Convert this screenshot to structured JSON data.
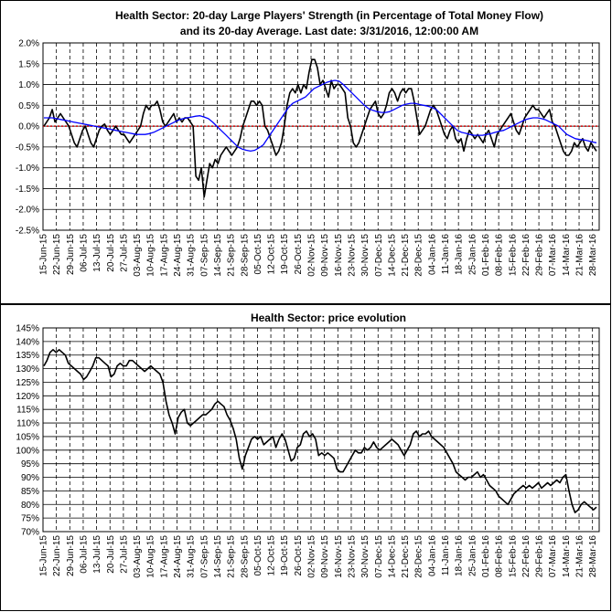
{
  "colors": {
    "strength_line": "#000000",
    "average_line": "#0000ff",
    "zero_line": "#cc0000",
    "price_line": "#000000",
    "grid": "#000000",
    "background": "#ffffff"
  },
  "chart_data": [
    {
      "type": "line",
      "title_line1": "Health Sector: 20-day Large Players' Strength (in Percentage of Total Money Flow)",
      "title_line2": "and its 20-day Average. Last date: 3/31/2016, 12:00:00 AM",
      "ylim": [
        -2.5,
        2.0
      ],
      "y_ticks": [
        "2.0%",
        "1.5%",
        "1.0%",
        "0.5%",
        "0.0%",
        "-0.5%",
        "-1.0%",
        "-1.5%",
        "-2.0%",
        "-2.5%"
      ],
      "x_ticks": [
        "15-Jun-15",
        "22-Jun-15",
        "29-Jun-15",
        "06-Jul-15",
        "13-Jul-15",
        "20-Jul-15",
        "27-Jul-15",
        "03-Aug-15",
        "10-Aug-15",
        "17-Aug-15",
        "24-Aug-15",
        "31-Aug-15",
        "07-Sep-15",
        "14-Sep-15",
        "21-Sep-15",
        "28-Sep-15",
        "05-Oct-15",
        "12-Oct-15",
        "19-Oct-15",
        "26-Oct-15",
        "02-Nov-15",
        "09-Nov-15",
        "16-Nov-15",
        "23-Nov-15",
        "30-Nov-15",
        "07-Dec-15",
        "14-Dec-15",
        "21-Dec-15",
        "28-Dec-15",
        "04-Jan-16",
        "11-Jan-16",
        "18-Jan-16",
        "25-Jan-16",
        "01-Feb-16",
        "08-Feb-16",
        "15-Feb-16",
        "22-Feb-16",
        "29-Feb-16",
        "07-Mar-16",
        "14-Mar-16",
        "21-Mar-16",
        "28-Mar-16"
      ],
      "grid": true,
      "series": [
        {
          "values": [
            0.0,
            0.1,
            0.2,
            0.4,
            0.1,
            0.2,
            0.3,
            0.2,
            0.1,
            0.0,
            -0.2,
            -0.4,
            -0.5,
            -0.3,
            -0.1,
            0.0,
            -0.2,
            -0.4,
            -0.5,
            -0.3,
            -0.1,
            0.0,
            0.05,
            -0.1,
            -0.2,
            -0.1,
            0.0,
            -0.1,
            -0.2,
            -0.2,
            -0.3,
            -0.4,
            -0.3,
            -0.2,
            -0.1,
            0.0,
            0.3,
            0.5,
            0.4,
            0.5,
            0.5,
            0.6,
            0.4,
            0.1,
            0.0,
            0.1,
            0.2,
            0.3,
            0.1,
            0.2,
            0.1,
            0.2,
            0.2,
            0.1,
            0.0,
            -1.2,
            -1.3,
            -1.0,
            -1.7,
            -1.3,
            -0.9,
            -1.0,
            -0.8,
            -0.9,
            -0.7,
            -0.6,
            -0.5,
            -0.6,
            -0.7,
            -0.6,
            -0.5,
            -0.3,
            0.0,
            0.2,
            0.4,
            0.6,
            0.6,
            0.5,
            0.6,
            0.5,
            0.0,
            -0.1,
            -0.3,
            -0.5,
            -0.7,
            -0.6,
            -0.4,
            0.0,
            0.5,
            0.8,
            0.9,
            0.8,
            1.0,
            0.8,
            1.0,
            0.9,
            1.3,
            1.6,
            1.6,
            1.4,
            1.0,
            1.1,
            0.9,
            0.7,
            1.1,
            0.9,
            1.0,
            1.0,
            0.9,
            0.8,
            0.2,
            0.0,
            -0.4,
            -0.5,
            -0.4,
            -0.2,
            0.0,
            0.2,
            0.4,
            0.5,
            0.6,
            0.3,
            0.2,
            0.3,
            0.5,
            0.8,
            0.9,
            0.8,
            0.6,
            0.8,
            0.9,
            0.8,
            0.9,
            0.9,
            0.6,
            0.2,
            -0.2,
            -0.1,
            0.0,
            0.2,
            0.4,
            0.5,
            0.4,
            0.2,
            0.0,
            -0.2,
            -0.3,
            -0.1,
            0.0,
            -0.3,
            -0.4,
            -0.3,
            -0.6,
            -0.3,
            -0.1,
            -0.2,
            -0.3,
            -0.2,
            -0.3,
            -0.4,
            -0.2,
            -0.1,
            -0.3,
            -0.5,
            -0.2,
            -0.1,
            0.0,
            0.1,
            0.2,
            0.3,
            0.1,
            -0.1,
            -0.2,
            0.0,
            0.2,
            0.3,
            0.4,
            0.5,
            0.4,
            0.4,
            0.3,
            0.2,
            0.3,
            0.4,
            0.1,
            0.0,
            -0.2,
            -0.4,
            -0.6,
            -0.7,
            -0.7,
            -0.6,
            -0.4,
            -0.5,
            -0.4,
            -0.3,
            -0.5,
            -0.6,
            -0.4,
            -0.5,
            -0.6
          ]
        },
        {
          "values": [
            0.2,
            0.2,
            0.2,
            0.18,
            0.16,
            0.14,
            0.12,
            0.1,
            0.08,
            0.06,
            0.04,
            0.02,
            0.0,
            -0.02,
            -0.04,
            -0.06,
            -0.08,
            -0.1,
            -0.12,
            -0.14,
            -0.16,
            -0.18,
            -0.2,
            -0.2,
            -0.2,
            -0.18,
            -0.15,
            -0.1,
            -0.05,
            0.0,
            0.05,
            0.1,
            0.15,
            0.18,
            0.2,
            0.22,
            0.24,
            0.25,
            0.22,
            0.18,
            0.1,
            0.0,
            -0.1,
            -0.2,
            -0.3,
            -0.4,
            -0.5,
            -0.55,
            -0.58,
            -0.6,
            -0.58,
            -0.52,
            -0.45,
            -0.3,
            -0.15,
            0.0,
            0.15,
            0.3,
            0.45,
            0.55,
            0.6,
            0.65,
            0.7,
            0.8,
            0.9,
            0.95,
            1.0,
            1.05,
            1.08,
            1.1,
            1.08,
            1.0,
            0.9,
            0.8,
            0.7,
            0.6,
            0.5,
            0.42,
            0.38,
            0.35,
            0.33,
            0.33,
            0.35,
            0.4,
            0.45,
            0.5,
            0.53,
            0.55,
            0.55,
            0.52,
            0.5,
            0.48,
            0.45,
            0.4,
            0.3,
            0.2,
            0.1,
            0.0,
            -0.1,
            -0.15,
            -0.17,
            -0.2,
            -0.22,
            -0.22,
            -0.22,
            -0.2,
            -0.18,
            -0.15,
            -0.12,
            -0.1,
            -0.05,
            0.0,
            0.05,
            0.1,
            0.15,
            0.18,
            0.2,
            0.2,
            0.18,
            0.15,
            0.1,
            0.05,
            0.0,
            -0.1,
            -0.2,
            -0.25,
            -0.3,
            -0.32,
            -0.33,
            -0.35,
            -0.38,
            -0.4
          ]
        }
      ]
    },
    {
      "type": "line",
      "title": "Health Sector: price evolution",
      "ylim": [
        70,
        145
      ],
      "y_ticks": [
        "145%",
        "140%",
        "135%",
        "130%",
        "125%",
        "120%",
        "115%",
        "110%",
        "105%",
        "100%",
        "95%",
        "90%",
        "85%",
        "80%",
        "75%",
        "70%"
      ],
      "x_ticks": [
        "15-Jun-15",
        "22-Jun-15",
        "29-Jun-15",
        "06-Jul-15",
        "13-Jul-15",
        "20-Jul-15",
        "27-Jul-15",
        "03-Aug-15",
        "10-Aug-15",
        "17-Aug-15",
        "24-Aug-15",
        "31-Aug-15",
        "07-Sep-15",
        "14-Sep-15",
        "21-Sep-15",
        "28-Sep-15",
        "05-Oct-15",
        "12-Oct-15",
        "19-Oct-15",
        "26-Oct-15",
        "02-Nov-15",
        "09-Nov-15",
        "16-Nov-15",
        "23-Nov-15",
        "30-Nov-15",
        "07-Dec-15",
        "14-Dec-15",
        "21-Dec-15",
        "28-Dec-15",
        "04-Jan-16",
        "11-Jan-16",
        "18-Jan-16",
        "25-Jan-16",
        "01-Feb-16",
        "08-Feb-16",
        "15-Feb-16",
        "22-Feb-16",
        "29-Feb-16",
        "07-Mar-16",
        "14-Mar-16",
        "21-Mar-16",
        "28-Mar-16"
      ],
      "grid": true,
      "series": [
        {
          "values": [
            131,
            133,
            136,
            137,
            136,
            137,
            136,
            135,
            132,
            131,
            130,
            129,
            128,
            126,
            127,
            129,
            131,
            134,
            134,
            133,
            132,
            131,
            127,
            128,
            131,
            132,
            131,
            131,
            133,
            133,
            132,
            131,
            130,
            129,
            130,
            131,
            130,
            129,
            128,
            125,
            118,
            113,
            110,
            106,
            112,
            114,
            115,
            110,
            109,
            110,
            111,
            112,
            113,
            113,
            114,
            115,
            117,
            118,
            117,
            116,
            113,
            111,
            108,
            104,
            97,
            93,
            98,
            101,
            104,
            105,
            104,
            105,
            102,
            103,
            104,
            105,
            101,
            104,
            106,
            104,
            100,
            96,
            97,
            101,
            102,
            106,
            107,
            105,
            106,
            104,
            98,
            99,
            98,
            99,
            98,
            97,
            93,
            92,
            92,
            94,
            96,
            98,
            100,
            99,
            99,
            101,
            100,
            101,
            103,
            101,
            100,
            101,
            102,
            103,
            104,
            103,
            102,
            100,
            98,
            100,
            102,
            106,
            107,
            105,
            106,
            106,
            107,
            105,
            104,
            103,
            102,
            101,
            99,
            97,
            95,
            92,
            91,
            90,
            89,
            90,
            90,
            91,
            92,
            90,
            91,
            89,
            87,
            86,
            85,
            83,
            82,
            81,
            80,
            82,
            84,
            85,
            86,
            87,
            86,
            87,
            86,
            87,
            88,
            86,
            87,
            88,
            87,
            88,
            89,
            88,
            90,
            91,
            85,
            80,
            77,
            78,
            80,
            81,
            80,
            79,
            78,
            79
          ]
        }
      ]
    }
  ]
}
